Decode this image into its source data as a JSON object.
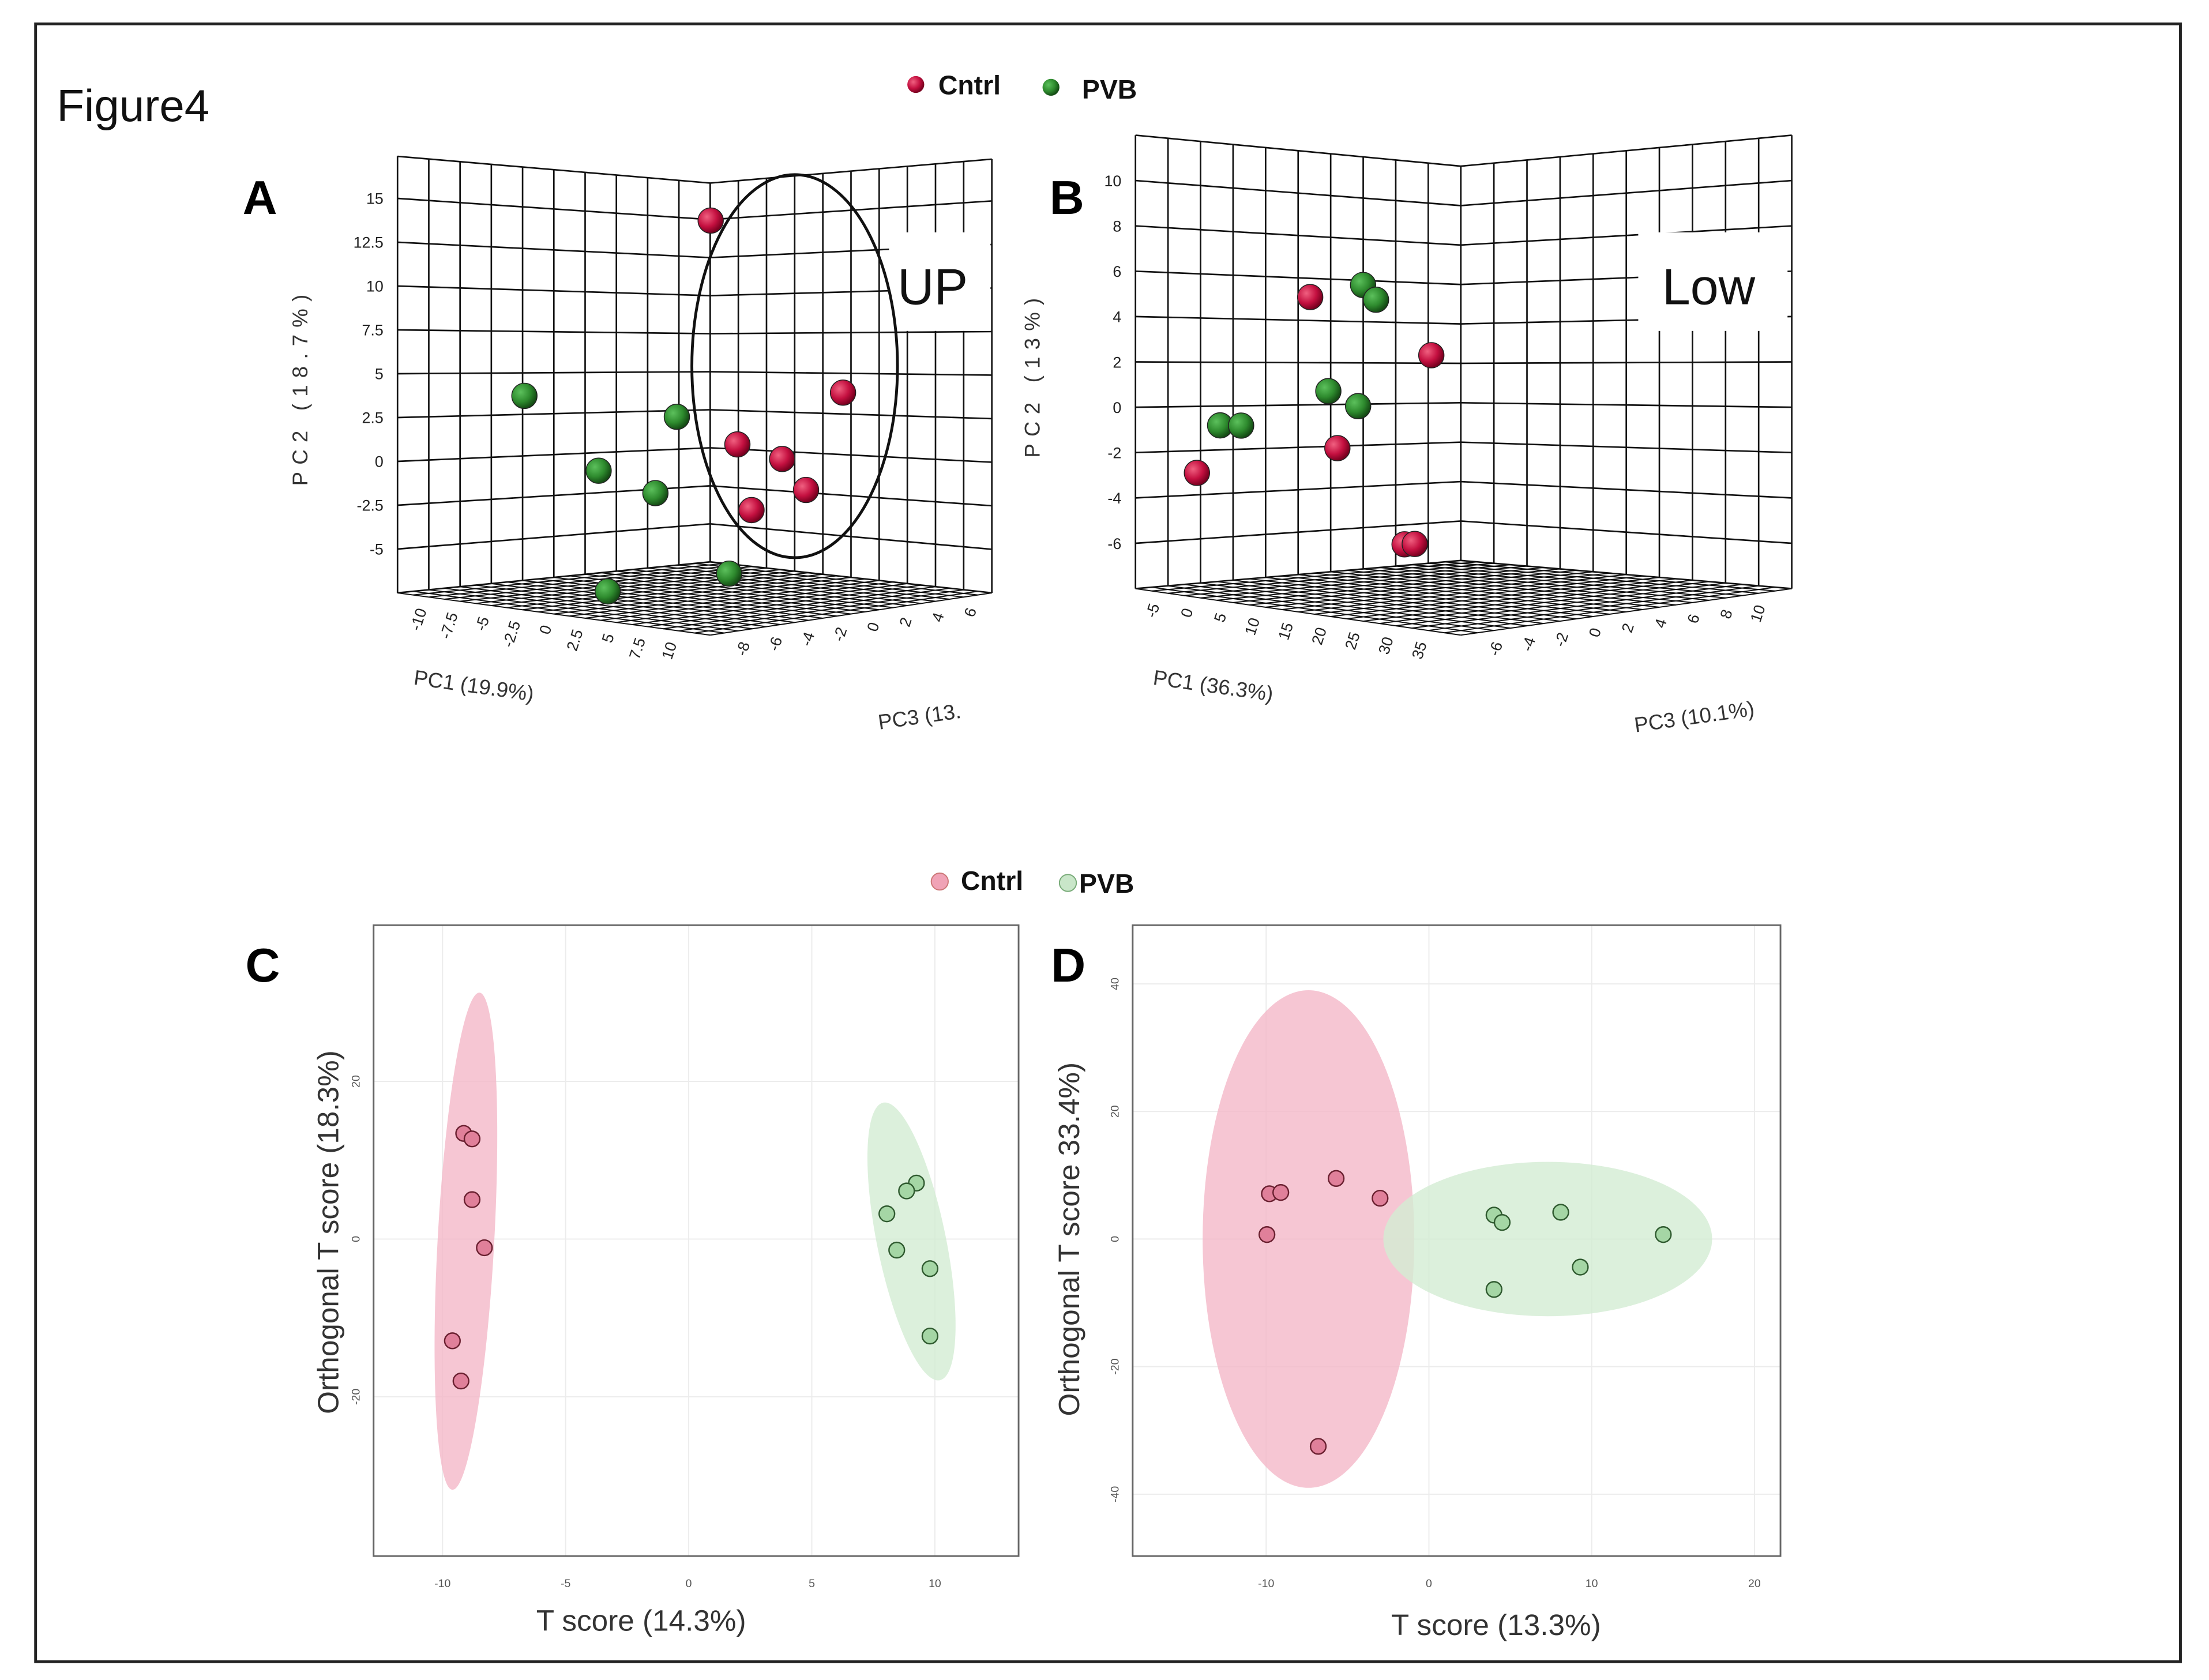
{
  "figure": {
    "title": "Figure4",
    "panel_labels": [
      "A",
      "B",
      "C",
      "D"
    ]
  },
  "legend_3d": {
    "items": [
      {
        "label": "Cntrl",
        "color": "#c41040"
      },
      {
        "label": "PVB",
        "color": "#2e8b2e"
      }
    ]
  },
  "legend_2d": {
    "items": [
      {
        "label": "Cntrl",
        "color": "#f0a3b6"
      },
      {
        "label": "PVB",
        "color": "#c9e6c9"
      }
    ]
  },
  "chart_data": [
    {
      "panel": "A",
      "type": "scatter3d",
      "annotation": "UP",
      "axes": {
        "pc1": {
          "label": "PC1 (19.9%)",
          "range": [
            -12,
            13
          ],
          "ticks": [
            -10,
            -7.5,
            -5,
            -2.5,
            0,
            2.5,
            5,
            7.5,
            10
          ]
        },
        "pc2": {
          "label": "PC2 (18.7%)",
          "range": [
            -7.5,
            17.4
          ],
          "ticks": [
            -5,
            -2.5,
            0,
            2.5,
            5,
            7.5,
            10,
            12.5,
            15
          ]
        },
        "pc3": {
          "label": "PC3 (13.",
          "range": [
            -10.2,
            7.2
          ],
          "ticks": [
            -8,
            -6,
            -4,
            -2,
            0,
            2,
            4,
            6
          ]
        }
      },
      "series": [
        {
          "name": "Cntrl",
          "color": "#c41040",
          "points": [
            [
              0.85,
              14.3,
              -1.26
            ],
            [
              6.5,
              4.24,
              2.66
            ],
            [
              1.97,
              1.29,
              -0.47
            ],
            [
              3.88,
              0.43,
              0.85
            ],
            [
              4.9,
              -1.38,
              1.56
            ],
            [
              2.58,
              -2.53,
              -0.06
            ]
          ]
        },
        {
          "name": "PVB",
          "color": "#2e8b2e",
          "points": [
            [
              -6.88,
              3.97,
              -6.63
            ],
            [
              -0.57,
              2.89,
              -2.25
            ],
            [
              -3.83,
              -0.28,
              -4.51
            ],
            [
              -1.47,
              -1.55,
              -2.87
            ],
            [
              1.63,
              -6.22,
              -0.72
            ],
            [
              -3.45,
              -7.27,
              -4.25
            ]
          ]
        }
      ]
    },
    {
      "panel": "B",
      "type": "scatter3d",
      "annotation": "Low",
      "axes": {
        "pc1": {
          "label": "PC1 (36.3%)",
          "range": [
            -8,
            40.7
          ],
          "ticks": [
            -5,
            0,
            5,
            10,
            15,
            20,
            25,
            30,
            35
          ]
        },
        "pc2": {
          "label": "PC2 (13%)",
          "range": [
            -8,
            12
          ],
          "ticks": [
            -6,
            -4,
            -2,
            0,
            2,
            4,
            6,
            8,
            10
          ]
        },
        "pc3": {
          "label": "PC3 (10.1%)",
          "range": [
            -8.3,
            11.86
          ],
          "ticks": [
            -6,
            -4,
            -2,
            0,
            2,
            4,
            6,
            8,
            10
          ]
        }
      },
      "series": [
        {
          "name": "Cntrl",
          "color": "#c41040",
          "points": [
            [
              5.05,
              5.17,
              -2.9
            ],
            [
              14.06,
              2.65,
              0.83
            ],
            [
              7.07,
              -1.55,
              -2.06
            ],
            [
              -3.4,
              -2.8,
              -6.4
            ],
            [
              12.06,
              -5.82,
              0.01
            ],
            [
              12.83,
              -5.8,
              0.32
            ]
          ]
        },
        {
          "name": "PVB",
          "color": "#2e8b2e",
          "points": [
            [
              8.99,
              5.76,
              -1.27
            ],
            [
              9.94,
              5.11,
              -0.87
            ],
            [
              6.4,
              0.99,
              -2.34
            ],
            [
              8.61,
              0.34,
              -1.42
            ],
            [
              -1.67,
              -0.66,
              -5.68
            ],
            [
              -0.11,
              -0.64,
              -5.03
            ]
          ]
        }
      ]
    },
    {
      "panel": "C",
      "type": "scatter",
      "xlabel": "T score (14.3%)",
      "ylabel": "Orthogonal T score (18.3%)",
      "xlim": [
        -12.8,
        13.4
      ],
      "ylim": [
        -40.2,
        39.8
      ],
      "xticks": [
        -10,
        -5,
        0,
        5,
        10
      ],
      "yticks": [
        -20,
        0,
        20
      ],
      "grid": true,
      "series": [
        {
          "name": "Cntrl",
          "color": "#e0809a",
          "ellipse_color": "#f4b8c8",
          "points": [
            [
              -9.14,
              13.4
            ],
            [
              -8.8,
              12.7
            ],
            [
              -8.8,
              5.0
            ],
            [
              -8.3,
              -1.1
            ],
            [
              -9.6,
              -12.9
            ],
            [
              -9.25,
              -18.0
            ]
          ],
          "ellipse": {
            "center": [
              -9.05,
              -0.27
            ],
            "axis_end": [
              -8.5,
              31.25
            ],
            "half_width_x": 1.15
          }
        },
        {
          "name": "PVB",
          "color": "#a5d6a5",
          "ellipse_color": "#d3ecd3",
          "points": [
            [
              9.25,
              7.1
            ],
            [
              8.85,
              6.1
            ],
            [
              8.05,
              3.2
            ],
            [
              8.45,
              -1.4
            ],
            [
              9.8,
              -3.75
            ],
            [
              9.8,
              -12.3
            ]
          ],
          "ellipse": {
            "center": [
              9.05,
              -0.3
            ],
            "axis_end": [
              7.9,
              17.3
            ],
            "half_width_x": 1.4
          }
        }
      ]
    },
    {
      "panel": "D",
      "type": "scatter",
      "xlabel": "T score (13.3%)",
      "ylabel": "Orthogonal T score 33.4%)",
      "xlim": [
        -18.2,
        21.6
      ],
      "ylim": [
        -49.7,
        49.2
      ],
      "xticks": [
        -10,
        0,
        10,
        20
      ],
      "yticks": [
        -40,
        -20,
        0,
        20,
        40
      ],
      "grid": true,
      "series": [
        {
          "name": "Cntrl",
          "color": "#e0809a",
          "ellipse_color": "#f4b8c8",
          "points": [
            [
              -9.8,
              7.1
            ],
            [
              -9.1,
              7.3
            ],
            [
              -5.7,
              9.5
            ],
            [
              -3.0,
              6.4
            ],
            [
              -9.95,
              0.7
            ],
            [
              -6.8,
              -32.5
            ]
          ],
          "ellipse": {
            "center": [
              -7.4,
              0
            ],
            "axis_end": [
              -7.4,
              39
            ],
            "half_width_x": 6.5
          }
        },
        {
          "name": "PVB",
          "color": "#a5d6a5",
          "ellipse_color": "#d3ecd3",
          "points": [
            [
              4.0,
              3.75
            ],
            [
              4.5,
              2.6
            ],
            [
              8.1,
              4.2
            ],
            [
              14.4,
              0.7
            ],
            [
              9.3,
              -4.4
            ],
            [
              4.0,
              -7.9
            ]
          ],
          "ellipse": {
            "center": [
              7.3,
              0
            ],
            "axis_end": [
              7.3,
              12.1
            ],
            "half_width_x": 10.1
          }
        }
      ]
    }
  ]
}
